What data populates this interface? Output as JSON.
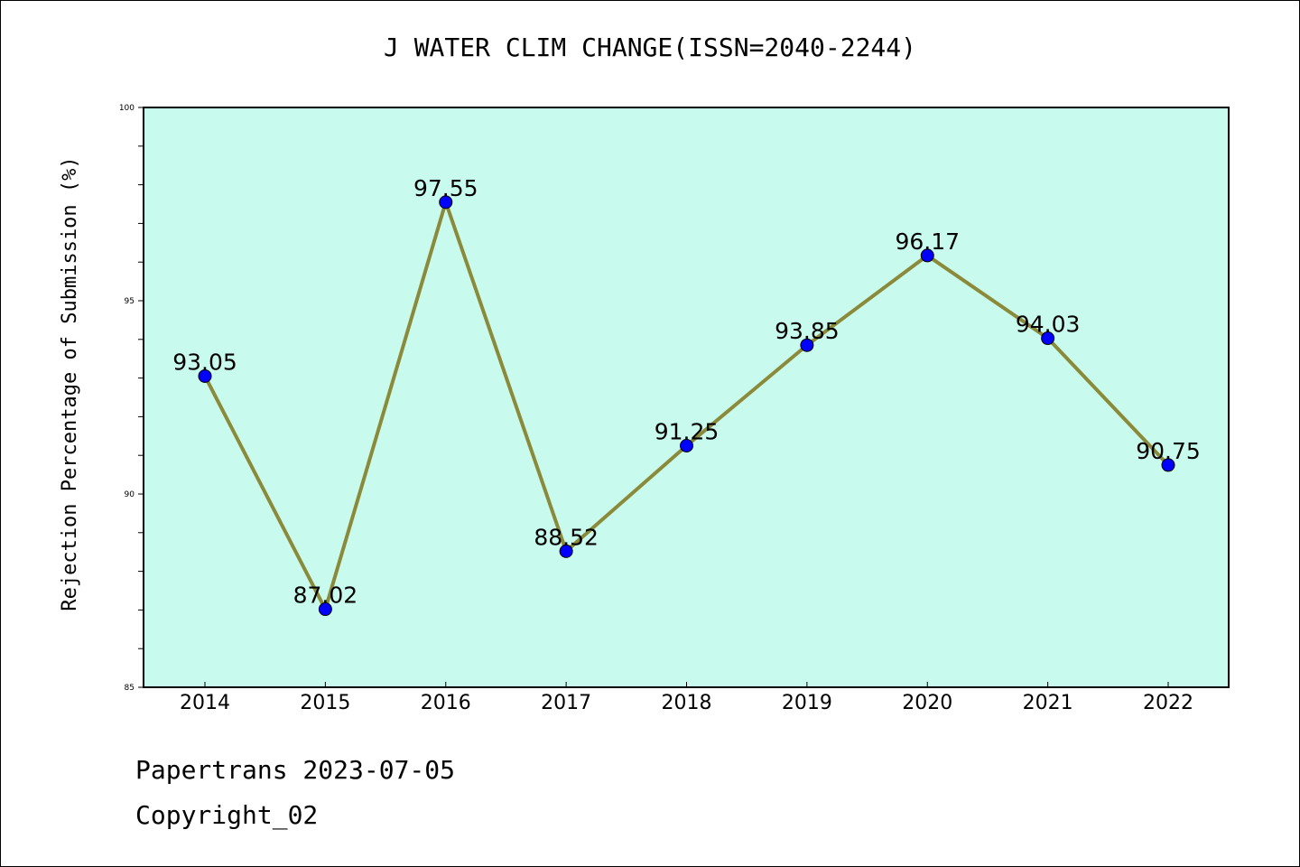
{
  "chart_data": {
    "type": "line",
    "title": "J WATER CLIM CHANGE(ISSN=2040-2244)",
    "ylabel": "Rejection Percentage of Submission (%)",
    "xlabel": "",
    "categories": [
      "2014",
      "2015",
      "2016",
      "2017",
      "2018",
      "2019",
      "2020",
      "2021",
      "2022"
    ],
    "series": [
      {
        "values": [
          93.05,
          87.02,
          97.55,
          88.52,
          91.25,
          93.85,
          96.17,
          94.03,
          90.75
        ]
      }
    ],
    "data_labels": [
      "93.05",
      "87.02",
      "97.55",
      "88.52",
      "91.25",
      "93.85",
      "96.17",
      "94.03",
      "90.75"
    ],
    "ylim": [
      85,
      100
    ],
    "yticks": [
      "85",
      "90",
      "95",
      "100"
    ],
    "grid": false,
    "colors": {
      "plot_background": "#c8fbee",
      "line": "#8b8a3a",
      "marker": "#0000ff"
    }
  },
  "footer": {
    "line1": "Papertrans 2023-07-05",
    "line2": "Copyright_02"
  }
}
